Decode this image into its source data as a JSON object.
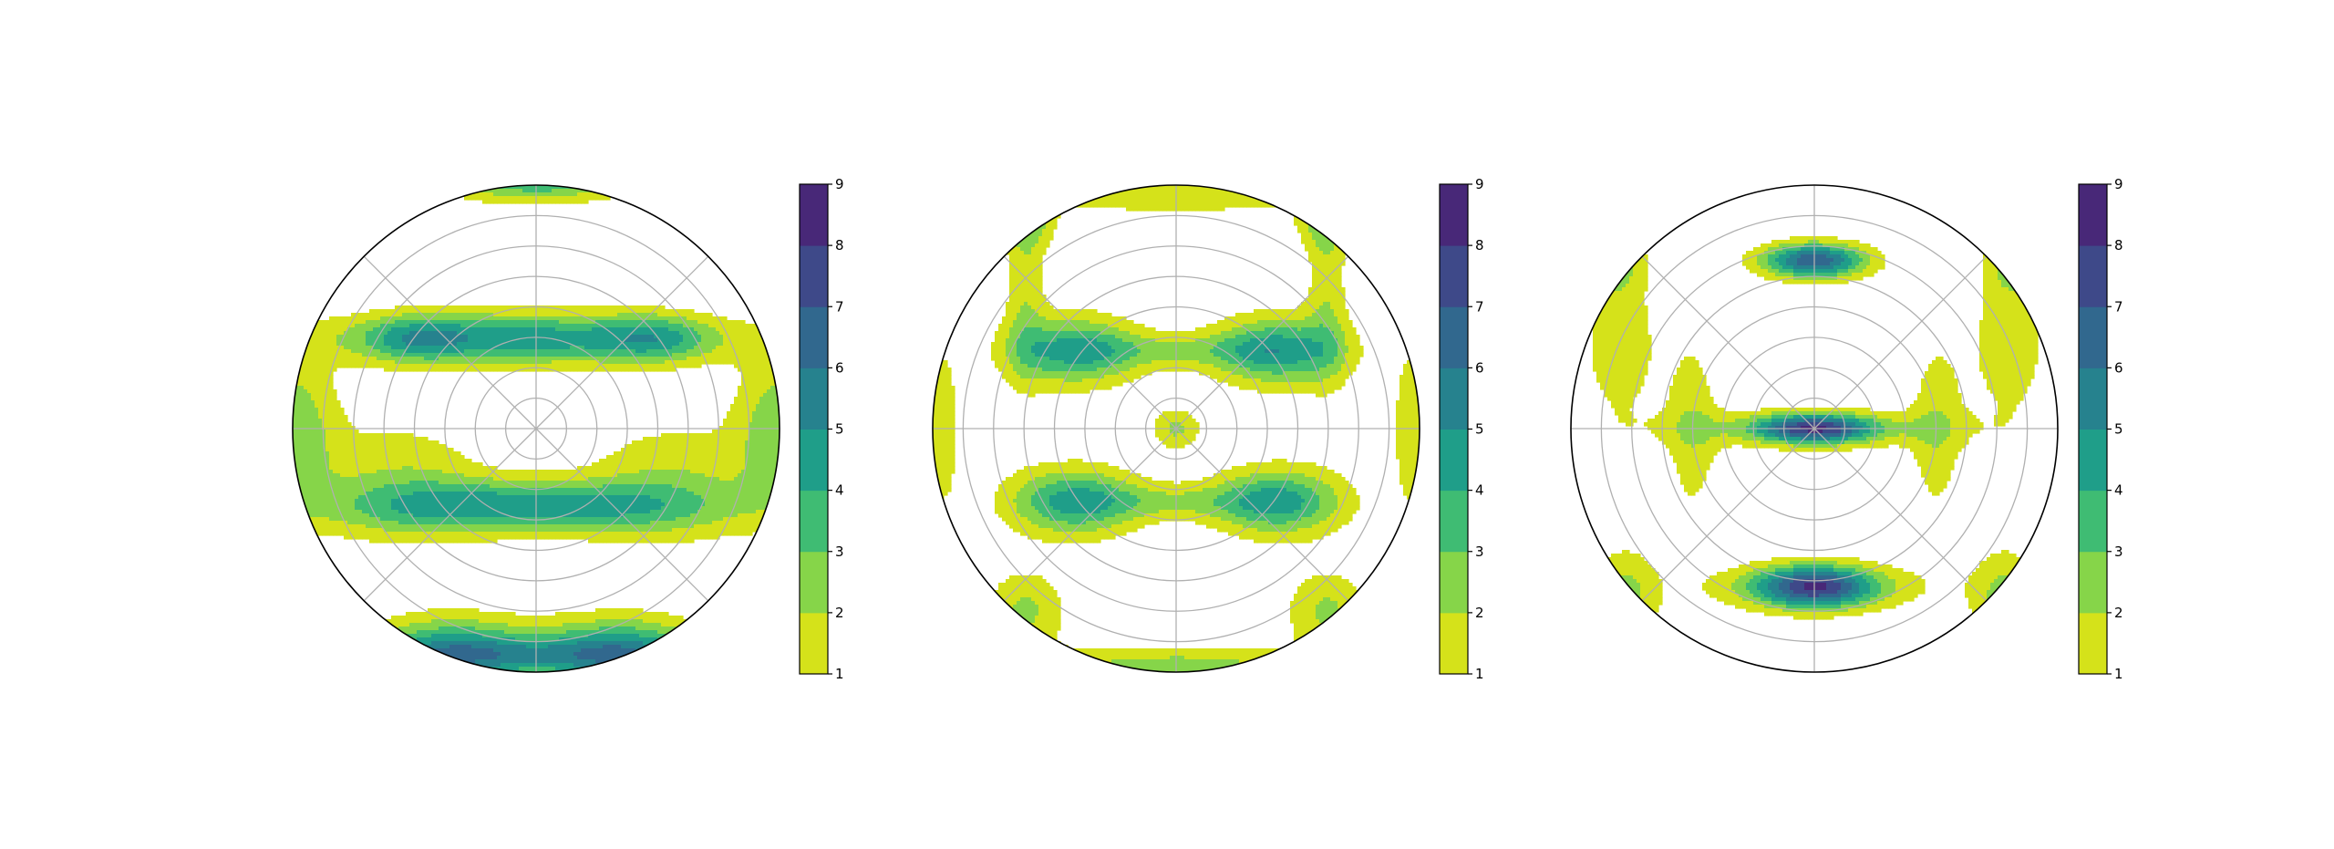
{
  "chart_data": [
    {
      "type": "heatmap",
      "projection": "polar",
      "title": "",
      "grid": true,
      "colorbar": {
        "levels": [
          1,
          2,
          3,
          4,
          5,
          6,
          7,
          8,
          9
        ],
        "tick_labels": [
          "1",
          "2",
          "3",
          "4",
          "5",
          "6",
          "7",
          "8",
          "9"
        ]
      },
      "blobs": [
        {
          "x": 0.0,
          "y": 1.04,
          "sx": 0.26,
          "sy": 0.07,
          "peak": 4.6
        },
        {
          "x": -0.04,
          "y": 0.37,
          "sx": 0.5,
          "sy": 0.075,
          "peak": 4.6
        },
        {
          "x": -0.04,
          "y": -0.32,
          "sx": 0.5,
          "sy": 0.075,
          "peak": 4.6
        },
        {
          "x": -0.5,
          "y": 0.37,
          "sx": 0.16,
          "sy": 0.07,
          "peak": 2.4
        },
        {
          "x": 0.5,
          "y": 0.37,
          "sx": 0.16,
          "sy": 0.07,
          "peak": 2.4
        },
        {
          "x": -1.0,
          "y": 0.0,
          "sx": 0.13,
          "sy": 0.24,
          "peak": 2.6
        },
        {
          "x": 1.0,
          "y": 0.0,
          "sx": 0.13,
          "sy": 0.24,
          "peak": 2.6
        },
        {
          "x": -0.55,
          "y": -0.22,
          "sx": 0.25,
          "sy": 0.18,
          "peak": 1.8
        },
        {
          "x": 0.55,
          "y": -0.22,
          "sx": 0.25,
          "sy": 0.18,
          "peak": 1.8
        },
        {
          "x": -0.35,
          "y": -0.92,
          "sx": 0.24,
          "sy": 0.1,
          "peak": 4.8
        },
        {
          "x": 0.35,
          "y": -0.92,
          "sx": 0.24,
          "sy": 0.1,
          "peak": 4.8
        },
        {
          "x": 0.0,
          "y": -0.93,
          "sx": 0.45,
          "sy": 0.05,
          "peak": 2.2
        }
      ]
    },
    {
      "type": "heatmap",
      "projection": "polar",
      "title": "",
      "grid": true,
      "colorbar": {
        "levels": [
          1,
          2,
          3,
          4,
          5,
          6,
          7,
          8,
          9
        ],
        "tick_labels": [
          "1",
          "2",
          "3",
          "4",
          "5",
          "6",
          "7",
          "8",
          "9"
        ]
      },
      "blobs": [
        {
          "x": 0.0,
          "y": 0.98,
          "sx": 0.5,
          "sy": 0.07,
          "peak": 2.0
        },
        {
          "x": -0.42,
          "y": 0.32,
          "sx": 0.19,
          "sy": 0.1,
          "peak": 4.2
        },
        {
          "x": 0.42,
          "y": 0.32,
          "sx": 0.19,
          "sy": 0.1,
          "peak": 4.4
        },
        {
          "x": -0.42,
          "y": -0.3,
          "sx": 0.19,
          "sy": 0.1,
          "peak": 4.2
        },
        {
          "x": 0.42,
          "y": -0.3,
          "sx": 0.19,
          "sy": 0.1,
          "peak": 4.2
        },
        {
          "x": 0.0,
          "y": 0.32,
          "sx": 0.3,
          "sy": 0.05,
          "peak": 1.6
        },
        {
          "x": 0.0,
          "y": -0.3,
          "sx": 0.3,
          "sy": 0.05,
          "peak": 1.6
        },
        {
          "x": -0.62,
          "y": 0.6,
          "sx": 0.06,
          "sy": 0.3,
          "peak": 1.7
        },
        {
          "x": 0.62,
          "y": 0.6,
          "sx": 0.06,
          "sy": 0.3,
          "peak": 1.7
        },
        {
          "x": 0.0,
          "y": 0.0,
          "sx": 0.07,
          "sy": 0.06,
          "peak": 2.2
        },
        {
          "x": -0.62,
          "y": -0.75,
          "sx": 0.12,
          "sy": 0.12,
          "peak": 2.2
        },
        {
          "x": 0.62,
          "y": -0.75,
          "sx": 0.12,
          "sy": 0.12,
          "peak": 2.2
        },
        {
          "x": 0.0,
          "y": -0.98,
          "sx": 0.5,
          "sy": 0.06,
          "peak": 2.5
        },
        {
          "x": -0.97,
          "y": 0.0,
          "sx": 0.06,
          "sy": 0.25,
          "peak": 1.8
        },
        {
          "x": 0.97,
          "y": 0.0,
          "sx": 0.06,
          "sy": 0.25,
          "peak": 1.8
        },
        {
          "x": -0.6,
          "y": 0.85,
          "sx": 0.08,
          "sy": 0.08,
          "peak": 1.8
        },
        {
          "x": 0.6,
          "y": 0.85,
          "sx": 0.08,
          "sy": 0.08,
          "peak": 1.8
        }
      ]
    },
    {
      "type": "heatmap",
      "projection": "polar",
      "title": "",
      "grid": true,
      "colorbar": {
        "levels": [
          1,
          2,
          3,
          4,
          5,
          6,
          7,
          8,
          9
        ],
        "tick_labels": [
          "1",
          "2",
          "3",
          "4",
          "5",
          "6",
          "7",
          "8",
          "9"
        ]
      },
      "blobs": [
        {
          "x": 0.0,
          "y": 0.69,
          "sx": 0.15,
          "sy": 0.05,
          "peak": 6.8
        },
        {
          "x": 0.0,
          "y": 0.0,
          "sx": 0.17,
          "sy": 0.04,
          "peak": 6.8
        },
        {
          "x": 0.0,
          "y": -0.65,
          "sx": 0.17,
          "sy": 0.06,
          "peak": 6.6
        },
        {
          "x": 0.0,
          "y": 0.0,
          "sx": 0.45,
          "sy": 0.06,
          "peak": 1.6
        },
        {
          "x": 0.0,
          "y": -0.65,
          "sx": 0.35,
          "sy": 0.07,
          "peak": 1.7
        },
        {
          "x": -0.5,
          "y": 0.0,
          "sx": 0.08,
          "sy": 0.28,
          "peak": 1.6
        },
        {
          "x": 0.5,
          "y": 0.0,
          "sx": 0.08,
          "sy": 0.28,
          "peak": 1.6
        },
        {
          "x": -0.8,
          "y": 0.35,
          "sx": 0.12,
          "sy": 0.25,
          "peak": 1.6
        },
        {
          "x": 0.8,
          "y": 0.35,
          "sx": 0.12,
          "sy": 0.25,
          "peak": 1.6
        },
        {
          "x": -0.78,
          "y": -0.7,
          "sx": 0.1,
          "sy": 0.15,
          "peak": 2.3
        },
        {
          "x": 0.78,
          "y": -0.7,
          "sx": 0.1,
          "sy": 0.15,
          "peak": 2.3
        },
        {
          "x": -0.82,
          "y": 0.7,
          "sx": 0.08,
          "sy": 0.1,
          "peak": 2.2
        },
        {
          "x": 0.82,
          "y": 0.7,
          "sx": 0.08,
          "sy": 0.1,
          "peak": 2.2
        }
      ]
    }
  ],
  "colors": {
    "levels": [
      "#d5e21a",
      "#86d549",
      "#3fbc73",
      "#1f9e89",
      "#26828e",
      "#31688e",
      "#3e4989",
      "#482878",
      "#440154"
    ],
    "grid": "#b0b0b0",
    "axis": "#000000"
  }
}
